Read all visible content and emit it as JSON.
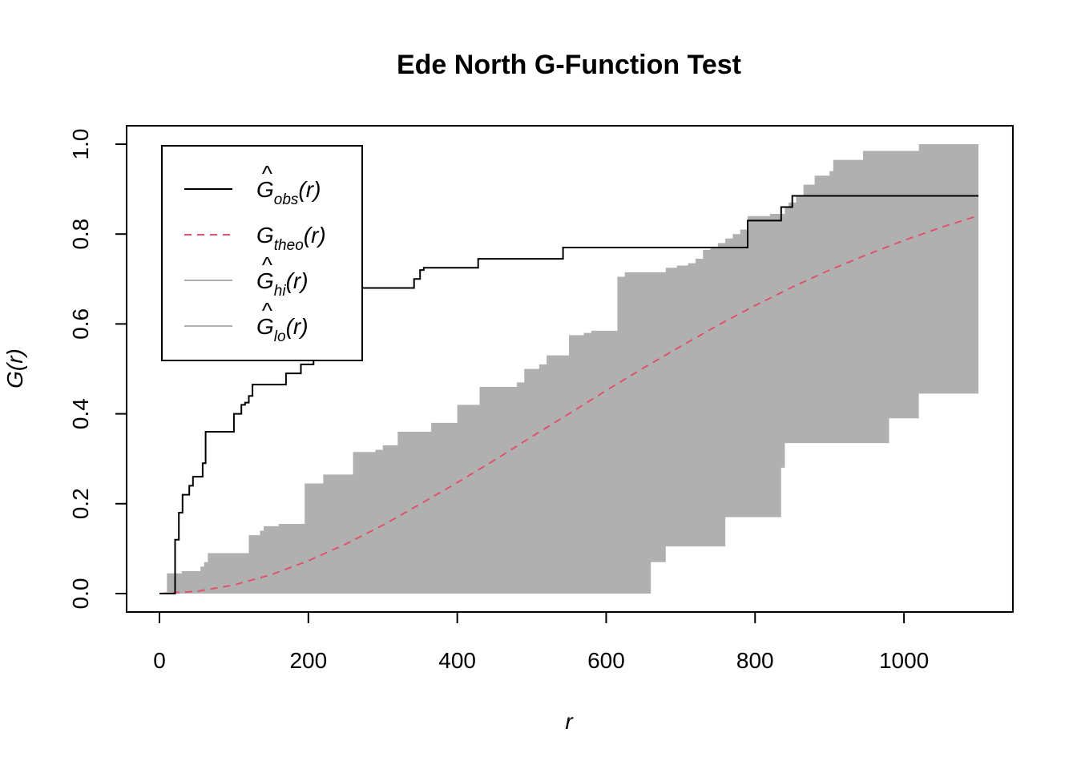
{
  "chart_data": {
    "type": "line",
    "title": "Ede North G-Function Test",
    "xlabel": "r",
    "ylabel": "G(r)",
    "xlim": [
      0,
      1100
    ],
    "ylim": [
      0,
      1.0
    ],
    "x_ticks": [
      "0",
      "200",
      "400",
      "600",
      "800",
      "1000"
    ],
    "y_ticks": [
      "0.0",
      "0.2",
      "0.4",
      "0.6",
      "0.8",
      "1.0"
    ],
    "grid": false,
    "legend_position": "top-left",
    "colors": {
      "obs": "#000000",
      "theo": "#DF536B",
      "envelope": "#B0B0B0"
    },
    "legend": [
      {
        "main": "G",
        "hat": true,
        "sub": "obs",
        "suffix": "(r)",
        "style": "solid",
        "color": "#000000"
      },
      {
        "main": "G",
        "hat": false,
        "sub": "theo",
        "suffix": "(r)",
        "style": "dashed",
        "color": "#DF536B"
      },
      {
        "main": "G",
        "hat": true,
        "sub": "hi",
        "suffix": "(r)",
        "style": "solid",
        "color": "#B0B0B0"
      },
      {
        "main": "G",
        "hat": true,
        "sub": "lo",
        "suffix": "(r)",
        "style": "solid",
        "color": "#B0B0B0"
      }
    ],
    "series": [
      {
        "name": "Ĝobs(r)",
        "key": "obs",
        "x": [
          0,
          7,
          21,
          26,
          31,
          35,
          40,
          45,
          50,
          55,
          58,
          62,
          70,
          90,
          100,
          110,
          115,
          120,
          125,
          145,
          165,
          170,
          190,
          200,
          205,
          207,
          215,
          220,
          225,
          230,
          235,
          240,
          245,
          250,
          255,
          260,
          270,
          280,
          300,
          320,
          338,
          342,
          350,
          355,
          400,
          428,
          432,
          460,
          500,
          538,
          542,
          600,
          700,
          780,
          790,
          810,
          830,
          835,
          850,
          1100
        ],
        "y": [
          0,
          0,
          0.12,
          0.18,
          0.22,
          0.22,
          0.24,
          0.26,
          0.26,
          0.26,
          0.29,
          0.36,
          0.36,
          0.36,
          0.4,
          0.42,
          0.425,
          0.44,
          0.465,
          0.465,
          0.465,
          0.49,
          0.51,
          0.51,
          0.51,
          0.53,
          0.555,
          0.57,
          0.59,
          0.6,
          0.62,
          0.64,
          0.66,
          0.66,
          0.68,
          0.68,
          0.68,
          0.68,
          0.68,
          0.68,
          0.68,
          0.7,
          0.72,
          0.725,
          0.725,
          0.745,
          0.745,
          0.745,
          0.745,
          0.745,
          0.77,
          0.77,
          0.77,
          0.77,
          0.83,
          0.83,
          0.83,
          0.86,
          0.885,
          0.885
        ]
      },
      {
        "name": "Gtheo(r)",
        "key": "theo",
        "x": [
          0,
          50,
          100,
          150,
          200,
          250,
          300,
          350,
          400,
          450,
          500,
          550,
          600,
          650,
          700,
          750,
          800,
          850,
          900,
          950,
          1000,
          1050,
          1100
        ],
        "y": [
          0,
          0.005,
          0.019,
          0.042,
          0.073,
          0.11,
          0.152,
          0.199,
          0.247,
          0.297,
          0.349,
          0.4,
          0.452,
          0.502,
          0.55,
          0.597,
          0.641,
          0.682,
          0.72,
          0.754,
          0.786,
          0.815,
          0.841
        ]
      },
      {
        "name": "Ĝhi(r)",
        "key": "hi",
        "x": [
          0,
          10,
          25,
          30,
          50,
          55,
          60,
          65,
          70,
          110,
          120,
          135,
          140,
          160,
          180,
          195,
          210,
          220,
          250,
          260,
          290,
          300,
          320,
          345,
          365,
          400,
          430,
          470,
          480,
          490,
          500,
          510,
          520,
          550,
          570,
          580,
          595,
          610,
          615,
          625,
          660,
          680,
          695,
          710,
          720,
          730,
          740,
          750,
          760,
          770,
          780,
          790,
          820,
          825,
          840,
          845,
          855,
          865,
          880,
          900,
          905,
          925,
          945,
          970,
          1000,
          1020,
          1100
        ],
        "y": [
          0,
          0.045,
          0.045,
          0.05,
          0.05,
          0.06,
          0.07,
          0.09,
          0.09,
          0.09,
          0.13,
          0.14,
          0.15,
          0.155,
          0.155,
          0.245,
          0.245,
          0.265,
          0.265,
          0.315,
          0.32,
          0.33,
          0.36,
          0.36,
          0.38,
          0.42,
          0.46,
          0.46,
          0.47,
          0.5,
          0.5,
          0.51,
          0.53,
          0.575,
          0.58,
          0.585,
          0.585,
          0.585,
          0.705,
          0.715,
          0.715,
          0.725,
          0.73,
          0.735,
          0.745,
          0.765,
          0.77,
          0.78,
          0.79,
          0.8,
          0.81,
          0.84,
          0.845,
          0.845,
          0.86,
          0.87,
          0.885,
          0.91,
          0.93,
          0.94,
          0.965,
          0.965,
          0.985,
          0.985,
          0.985,
          1.0,
          1.0
        ]
      },
      {
        "name": "Ĝlo(r)",
        "key": "lo",
        "x": [
          0,
          655,
          660,
          675,
          680,
          710,
          720,
          760,
          780,
          830,
          835,
          840,
          870,
          920,
          960,
          980,
          1000,
          1020,
          1100
        ],
        "y": [
          0,
          0,
          0.07,
          0.07,
          0.105,
          0.105,
          0.105,
          0.17,
          0.17,
          0.17,
          0.28,
          0.335,
          0.335,
          0.335,
          0.335,
          0.39,
          0.39,
          0.445,
          0.445
        ]
      }
    ]
  }
}
